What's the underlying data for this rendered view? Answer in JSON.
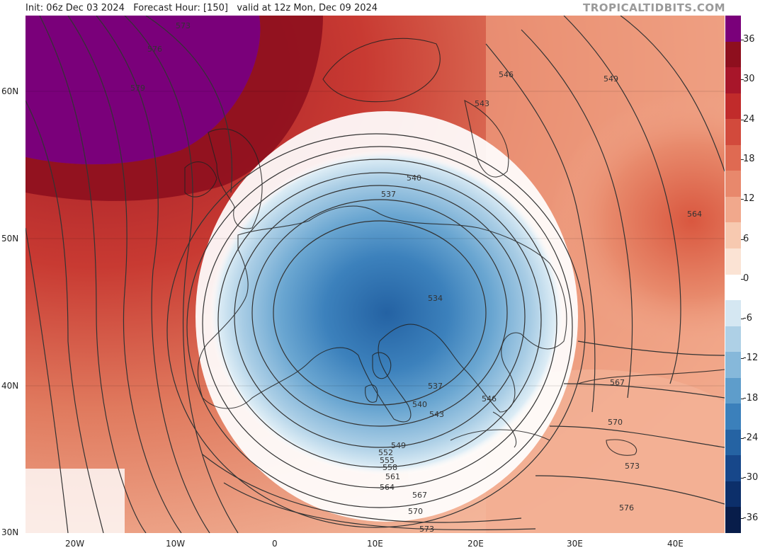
{
  "header": {
    "init": "Init: 06z Dec 03 2024",
    "forecast": "Forecast Hour: [150]",
    "valid": "valid at 12z Mon, Dec 09 2024",
    "brand": "TROPICALTIDBITS.COM"
  },
  "map": {
    "lat_labels": [
      "60N",
      "50N",
      "40N",
      "30N"
    ],
    "lon_labels": [
      "20W",
      "10W",
      "0",
      "10E",
      "20E",
      "30E",
      "40E"
    ],
    "contour_labels": [
      "573",
      "576",
      "579",
      "546",
      "549",
      "543",
      "540",
      "537",
      "564",
      "534",
      "537",
      "540",
      "543",
      "546",
      "567",
      "570",
      "573",
      "549",
      "552",
      "555",
      "558",
      "561",
      "564",
      "567",
      "570",
      "573",
      "576"
    ]
  },
  "colorbar": {
    "ticks": [
      "36",
      "30",
      "24",
      "18",
      "12",
      "6",
      "0",
      "-6",
      "-12",
      "-18",
      "-24",
      "-30",
      "-36"
    ],
    "colors": [
      "#7a007a",
      "#8e0f1e",
      "#a8162a",
      "#c12b2b",
      "#d24a3c",
      "#df6a52",
      "#e8886c",
      "#f1a88c",
      "#f7c9b0",
      "#fbe3d4",
      "#ffffff",
      "#d5e7f2",
      "#aed0e6",
      "#86b8da",
      "#5e9dcb",
      "#3b80bb",
      "#2563a3",
      "#17478a",
      "#0c2f6a",
      "#081d4a"
    ]
  }
}
